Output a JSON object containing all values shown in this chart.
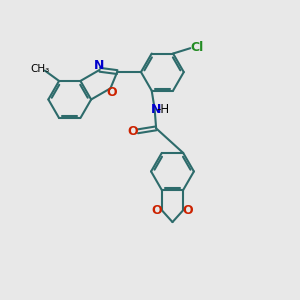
{
  "bg_color": "#e8e8e8",
  "bond_color": "#2d6b6b",
  "bond_width": 1.5,
  "atom_colors": {
    "N": "#0000cc",
    "O": "#cc2200",
    "Cl": "#228b22",
    "C": "#2d6b6b"
  },
  "font_size": 9,
  "fig_size": [
    3.0,
    3.0
  ],
  "dpi": 100
}
